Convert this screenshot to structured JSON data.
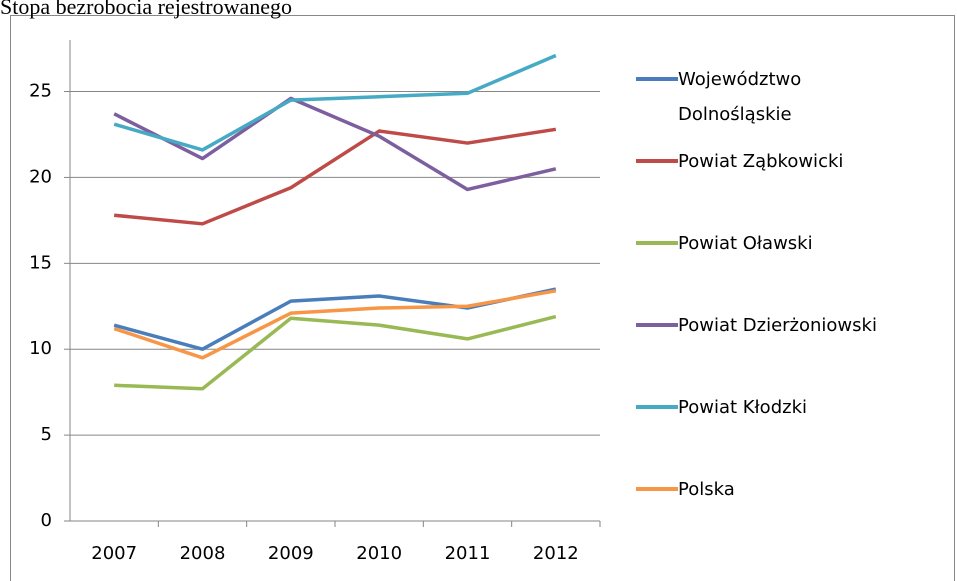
{
  "chart_data": {
    "type": "line",
    "title": "Stopa bezrobocia rejestrowanego",
    "categories": [
      "2007",
      "2008",
      "2009",
      "2010",
      "2011",
      "2012"
    ],
    "series": [
      {
        "name": "Województwo Dolnośląskie",
        "color": "#4a7ebb",
        "values": [
          11.4,
          10.0,
          12.8,
          13.1,
          12.4,
          13.5
        ]
      },
      {
        "name": "Powiat Ząbkowicki",
        "color": "#be4b48",
        "values": [
          17.8,
          17.3,
          19.4,
          22.7,
          22.0,
          22.8
        ]
      },
      {
        "name": "Powiat Oławski",
        "color": "#98b954",
        "values": [
          7.9,
          7.7,
          11.8,
          11.4,
          10.6,
          11.9
        ]
      },
      {
        "name": "Powiat Dzierżoniowski",
        "color": "#7d5fa0",
        "values": [
          23.7,
          21.1,
          24.6,
          22.4,
          19.3,
          20.5
        ]
      },
      {
        "name": "Powiat Kłodzki",
        "color": "#46aac5",
        "values": [
          23.1,
          21.6,
          24.5,
          24.7,
          24.9,
          27.1
        ]
      },
      {
        "name": "Polska",
        "color": "#f79646",
        "values": [
          11.2,
          9.5,
          12.1,
          12.4,
          12.5,
          13.4
        ]
      }
    ],
    "ylim": [
      0,
      28
    ],
    "yticks": [
      0,
      5,
      10,
      15,
      20,
      25
    ],
    "grid": true,
    "legend": "right"
  }
}
